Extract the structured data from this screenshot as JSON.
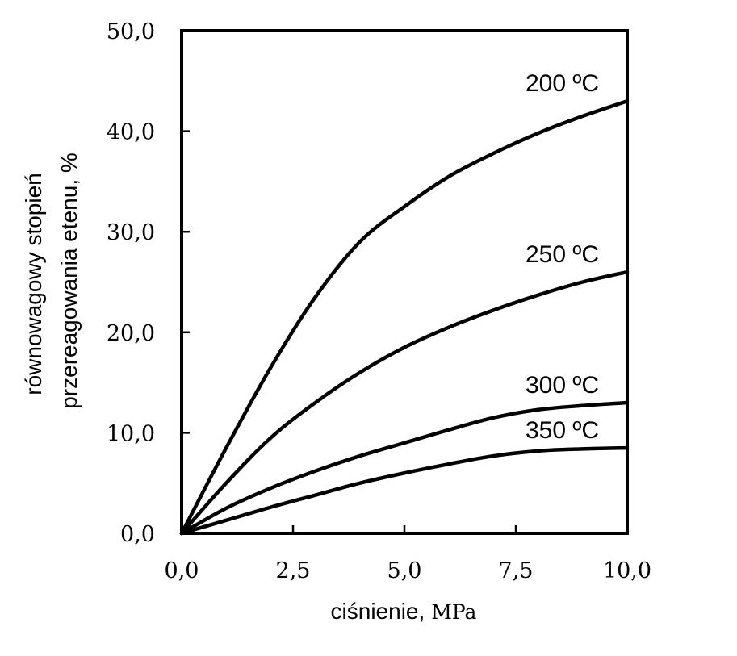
{
  "chart_data": {
    "type": "line",
    "xlabel": "ciśnienie,",
    "xlabel_unit": "MPa",
    "ylabel": [
      "równowagowy stopień",
      "przereagowania etenu, %"
    ],
    "xlim": [
      0,
      10
    ],
    "ylim": [
      0,
      50
    ],
    "x_ticks": [
      "0,0",
      "2,5",
      "5,0",
      "7,5",
      "10,0"
    ],
    "y_ticks": [
      "0,0",
      "10,0",
      "20,0",
      "30,0",
      "40,0",
      "50,0"
    ],
    "grid": false,
    "legend": "inline labels at right end of curves",
    "series": [
      {
        "name": "200 ºC",
        "x": [
          0,
          1,
          2,
          3,
          4,
          5,
          6,
          7,
          8,
          9,
          10
        ],
        "y": [
          0,
          8.5,
          16.5,
          23.5,
          29,
          32.5,
          35.5,
          37.8,
          39.8,
          41.5,
          43
        ]
      },
      {
        "name": "250 ºC",
        "x": [
          0,
          1,
          2,
          3,
          4,
          5,
          6,
          7,
          8,
          9,
          10
        ],
        "y": [
          0,
          5,
          9.5,
          13,
          16,
          18.5,
          20.5,
          22.2,
          23.7,
          25,
          26
        ]
      },
      {
        "name": "300 ºC",
        "x": [
          0,
          1,
          2,
          3,
          4,
          5,
          6,
          7,
          8,
          9,
          10
        ],
        "y": [
          0,
          2.5,
          4.5,
          6.2,
          7.7,
          9,
          10.3,
          11.5,
          12.3,
          12.7,
          13
        ]
      },
      {
        "name": "350 ºC",
        "x": [
          0,
          1,
          2,
          3,
          4,
          5,
          6,
          7,
          8,
          9,
          10
        ],
        "y": [
          0,
          1.3,
          2.6,
          3.8,
          5,
          6,
          6.9,
          7.7,
          8.2,
          8.4,
          8.5
        ]
      }
    ]
  }
}
